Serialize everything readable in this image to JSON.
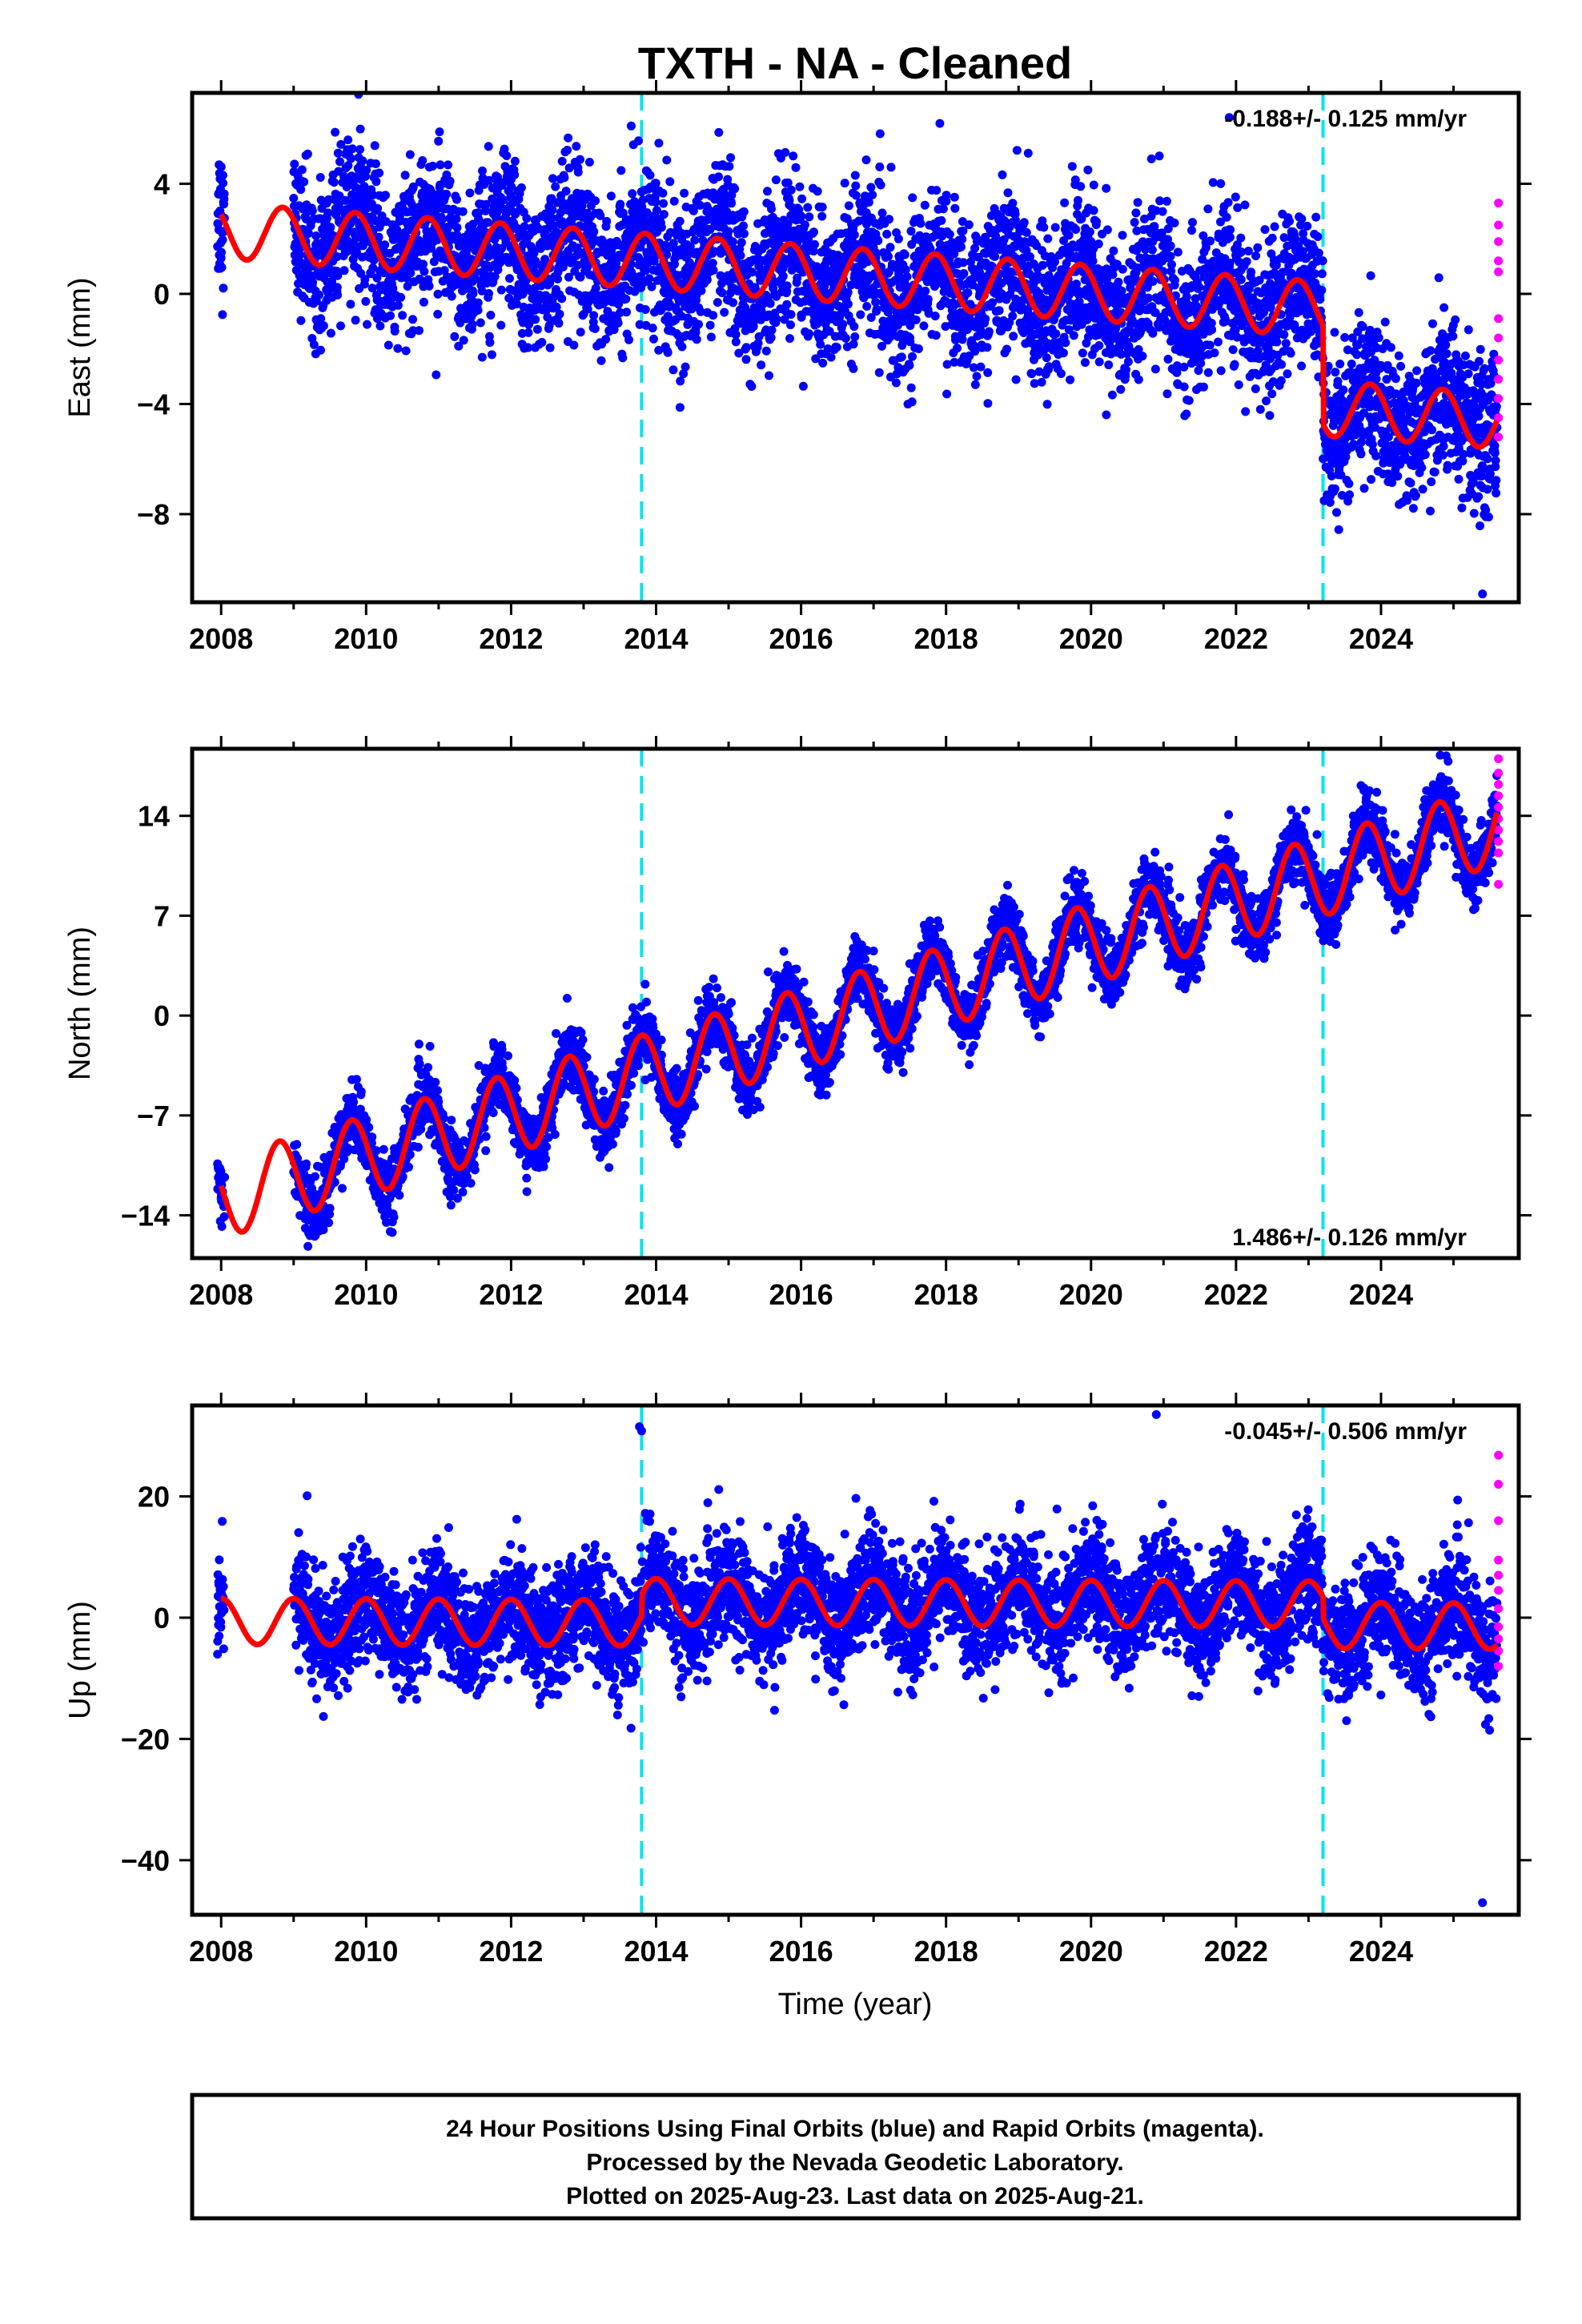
{
  "figure": {
    "title": "TXTH  - NA - Cleaned",
    "xlabel": "Time (year)",
    "footer": [
      "24 Hour Positions Using Final Orbits (blue) and Rapid Orbits (magenta).",
      "Processed by the Nevada Geodetic Laboratory.",
      "Plotted on 2025-Aug-23. Last data on 2025-Aug-21."
    ]
  },
  "colors": {
    "final_orbits": "#0000ff",
    "rapid_orbits": "#ff00ff",
    "model": "#ff0000",
    "breaks": "#00e5ee"
  },
  "chart_data": [
    {
      "type": "scatter",
      "component": "East",
      "ylabel": "East (mm)",
      "rate_label": "-0.188+/- 0.125 mm/yr",
      "rate_position": "top-right",
      "xlim": [
        2007.6,
        2025.9
      ],
      "ylim": [
        -11.2,
        7.3
      ],
      "xticks": [
        2008,
        2010,
        2012,
        2014,
        2016,
        2018,
        2020,
        2022,
        2024
      ],
      "yticks": [
        4,
        0,
        -4,
        -8
      ],
      "breaks": [
        2013.8,
        2023.2
      ],
      "model": {
        "offset": 2.3,
        "rate_mm_per_yr": -0.188,
        "annual_amplitude": 1.0,
        "annual_phase_yr": 0.6,
        "steps": [
          {
            "year": 2023.2,
            "size": -3.6
          }
        ],
        "scatter_sd": 1.35
      },
      "outliers": [
        {
          "x": 2025.4,
          "y": -10.9
        }
      ],
      "rapid_points": [
        3.3,
        2.5,
        1.9,
        1.2,
        0.8,
        -0.9,
        -1.6,
        -2.4,
        -3.1,
        -3.8,
        -4.5,
        -5.2
      ]
    },
    {
      "type": "scatter",
      "component": "North",
      "ylabel": "North (mm)",
      "rate_label": "1.486+/- 0.126 mm/yr",
      "rate_position": "bottom-right",
      "xlim": [
        2007.6,
        2025.9
      ],
      "ylim": [
        -17.0,
        18.7
      ],
      "xticks": [
        2008,
        2010,
        2012,
        2014,
        2016,
        2018,
        2020,
        2022,
        2024
      ],
      "yticks": [
        14,
        7,
        0,
        -7,
        -14
      ],
      "breaks": [
        2013.8,
        2023.2
      ],
      "model": {
        "offset": -12.8,
        "rate_mm_per_yr": 1.486,
        "annual_amplitude": 2.8,
        "annual_phase_yr": 0.55,
        "steps": [],
        "scatter_sd": 1.1
      },
      "outliers": [
        {
          "x": 2024.9,
          "y": 18.2
        }
      ],
      "rapid_points": [
        18.0,
        17.0,
        16.2,
        15.4,
        14.6,
        13.8,
        13.0,
        12.2,
        11.4,
        9.2
      ]
    },
    {
      "type": "scatter",
      "component": "Up",
      "ylabel": "Up (mm)",
      "rate_label": "-0.045+/- 0.506 mm/yr",
      "rate_position": "top-right",
      "xlim": [
        2007.6,
        2025.9
      ],
      "ylim": [
        -49.0,
        35.0
      ],
      "xticks": [
        2008,
        2010,
        2012,
        2014,
        2016,
        2018,
        2020,
        2022,
        2024
      ],
      "yticks": [
        20,
        0,
        -20,
        -40
      ],
      "breaks": [
        2013.8,
        2023.2
      ],
      "model": {
        "offset": -0.6,
        "rate_mm_per_yr": -0.045,
        "annual_amplitude": 3.8,
        "annual_phase_yr": 0.75,
        "steps": [
          {
            "year": 2013.8,
            "size": 3.5
          },
          {
            "year": 2023.2,
            "size": -3.5
          }
        ],
        "scatter_sd": 4.5
      },
      "outliers": [
        {
          "x": 2013.77,
          "y": 31.5
        },
        {
          "x": 2013.8,
          "y": 30.8
        },
        {
          "x": 2020.9,
          "y": 33.5
        },
        {
          "x": 2025.4,
          "y": -47.0
        }
      ],
      "rapid_points": [
        26.8,
        22.0,
        16.0,
        9.5,
        7.0,
        4.5,
        1.5,
        -1.5,
        -3.5,
        -5.5,
        -8.0
      ]
    }
  ]
}
